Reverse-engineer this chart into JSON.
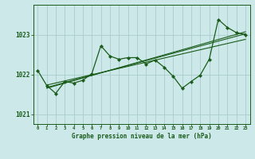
{
  "title": "Graphe pression niveau de la mer (hPa)",
  "bg_color": "#cce8e8",
  "grid_color": "#aacccc",
  "line_color": "#1a5c1a",
  "xlim": [
    -0.5,
    23.5
  ],
  "ylim": [
    1020.75,
    1023.75
  ],
  "yticks": [
    1021,
    1022,
    1023
  ],
  "xticks": [
    0,
    1,
    2,
    3,
    4,
    5,
    6,
    7,
    8,
    9,
    10,
    11,
    12,
    13,
    14,
    15,
    16,
    17,
    18,
    19,
    20,
    21,
    22,
    23
  ],
  "main_y": [
    1022.1,
    1021.72,
    1021.52,
    1021.82,
    1021.78,
    1021.85,
    1022.02,
    1022.72,
    1022.46,
    1022.38,
    1022.42,
    1022.42,
    1022.26,
    1022.36,
    1022.18,
    1021.95,
    1021.65,
    1021.82,
    1021.98,
    1022.38,
    1023.38,
    1023.18,
    1023.05,
    1023.0
  ],
  "trend1": [
    1,
    1021.73,
    23,
    1022.88
  ],
  "trend2": [
    1,
    1021.67,
    23,
    1023.02
  ],
  "trend3": [
    1,
    1021.65,
    23,
    1023.07
  ]
}
